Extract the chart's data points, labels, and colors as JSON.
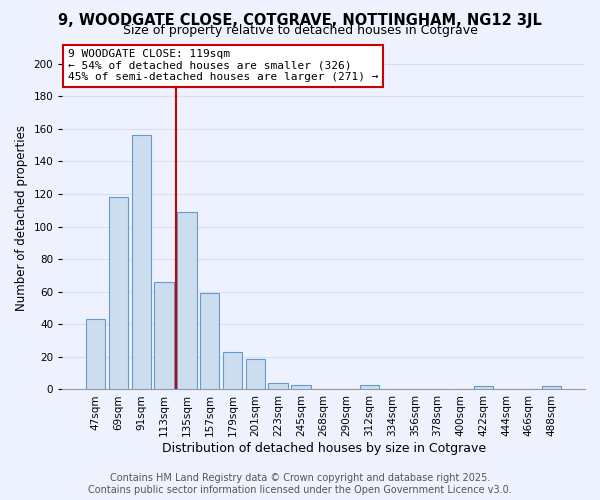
{
  "title": "9, WOODGATE CLOSE, COTGRAVE, NOTTINGHAM, NG12 3JL",
  "subtitle": "Size of property relative to detached houses in Cotgrave",
  "xlabel": "Distribution of detached houses by size in Cotgrave",
  "ylabel": "Number of detached properties",
  "bar_labels": [
    "47sqm",
    "69sqm",
    "91sqm",
    "113sqm",
    "135sqm",
    "157sqm",
    "179sqm",
    "201sqm",
    "223sqm",
    "245sqm",
    "268sqm",
    "290sqm",
    "312sqm",
    "334sqm",
    "356sqm",
    "378sqm",
    "400sqm",
    "422sqm",
    "444sqm",
    "466sqm",
    "488sqm"
  ],
  "bar_values": [
    43,
    118,
    156,
    66,
    109,
    59,
    23,
    19,
    4,
    3,
    0,
    0,
    3,
    0,
    0,
    0,
    0,
    2,
    0,
    0,
    2
  ],
  "bar_color": "#ccddf0",
  "bar_edge_color": "#6699cc",
  "vline_x": 3.5,
  "vline_color": "#cc0000",
  "annotation_line1": "9 WOODGATE CLOSE: 119sqm",
  "annotation_line2": "← 54% of detached houses are smaller (326)",
  "annotation_line3": "45% of semi-detached houses are larger (271) →",
  "ylim": [
    0,
    210
  ],
  "yticks": [
    0,
    20,
    40,
    60,
    80,
    100,
    120,
    140,
    160,
    180,
    200
  ],
  "bg_color": "#eef2ff",
  "grid_color": "#d8dff0",
  "footer_line1": "Contains HM Land Registry data © Crown copyright and database right 2025.",
  "footer_line2": "Contains public sector information licensed under the Open Government Licence v3.0.",
  "title_fontsize": 10.5,
  "subtitle_fontsize": 9,
  "annotation_fontsize": 8,
  "ylabel_fontsize": 8.5,
  "xlabel_fontsize": 9,
  "footer_fontsize": 7,
  "tick_fontsize": 7.5
}
